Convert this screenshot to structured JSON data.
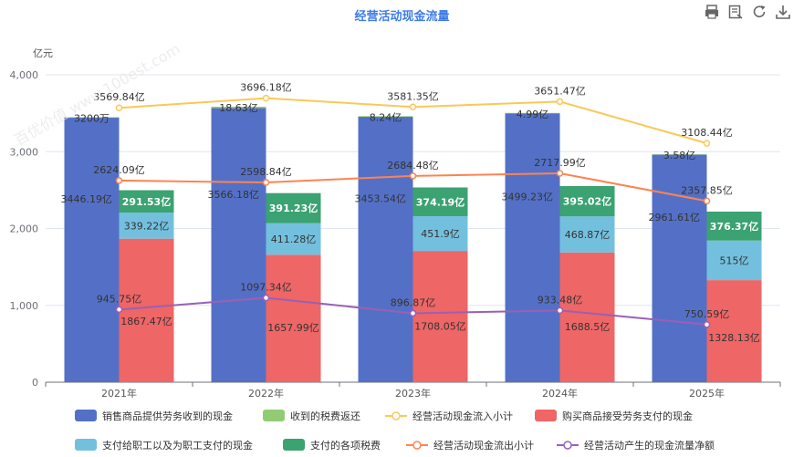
{
  "toolbar": {
    "icons": [
      "print-icon",
      "data-view-icon",
      "refresh-icon",
      "download-icon"
    ]
  },
  "chart_data": {
    "type": "bar",
    "title": "经营活动现金流量",
    "ylabel": "亿元",
    "ylim": [
      0,
      4000
    ],
    "yticks": [
      0,
      1000,
      2000,
      3000,
      4000
    ],
    "ytick_labels": [
      "0",
      "1,000",
      "2,000",
      "3,000",
      "4,000"
    ],
    "categories": [
      "2021年",
      "2022年",
      "2023年",
      "2024年",
      "2025年"
    ],
    "stack_left": [
      {
        "name": "销售商品提供劳务收到的现金",
        "color": "#5470c6",
        "values": [
          3446.19,
          3566.18,
          3453.54,
          3499.23,
          2961.61
        ],
        "labels": [
          "3446.19亿",
          "3566.18亿",
          "3453.54亿",
          "3499.23亿",
          "2961.61亿"
        ]
      },
      {
        "name": "收到的税费返还",
        "color": "#91cc75",
        "values": [
          0.32,
          18.63,
          8.24,
          4.99,
          3.58
        ],
        "labels": [
          "3200万",
          "18.63亿",
          "8.24亿",
          "4.99亿",
          "3.58亿"
        ]
      }
    ],
    "stack_right": [
      {
        "name": "购买商品接受劳务支付的现金",
        "color": "#ee6666",
        "values": [
          1867.47,
          1657.99,
          1708.05,
          1688.5,
          1328.13
        ],
        "labels": [
          "1867.47亿",
          "1657.99亿",
          "1708.05亿",
          "1688.5亿",
          "1328.13亿"
        ]
      },
      {
        "name": "支付给职工以及为职工支付的现金",
        "color": "#73c0de",
        "values": [
          339.22,
          411.28,
          451.9,
          468.87,
          515
        ],
        "labels": [
          "339.22亿",
          "411.28亿",
          "451.9亿",
          "468.87亿",
          "515亿"
        ]
      },
      {
        "name": "支付的各项税费",
        "color": "#3ba272",
        "values": [
          291.53,
          391.23,
          374.19,
          395.02,
          376.37
        ],
        "labels": [
          "291.53亿",
          "391.23亿",
          "374.19亿",
          "395.02亿",
          "376.37亿"
        ]
      }
    ],
    "lines": [
      {
        "name": "经营活动现金流入小计",
        "color": "#fac858",
        "values": [
          3569.84,
          3696.18,
          3581.35,
          3651.47,
          3108.44
        ],
        "labels": [
          "3569.84亿",
          "3696.18亿",
          "3581.35亿",
          "3651.47亿",
          "3108.44亿"
        ]
      },
      {
        "name": "经营活动现金流出小计",
        "color": "#fc8452",
        "values": [
          2624.09,
          2598.84,
          2684.48,
          2717.99,
          2357.85
        ],
        "labels": [
          "2624.09亿",
          "2598.84亿",
          "2684.48亿",
          "2717.99亿",
          "2357.85亿"
        ]
      },
      {
        "name": "经营活动产生的现金流量净额",
        "color": "#9a60b4",
        "values": [
          945.75,
          1097.34,
          896.87,
          933.48,
          750.59
        ],
        "labels": [
          "945.75亿",
          "1097.34亿",
          "896.87亿",
          "933.48亿",
          "750.59亿"
        ]
      }
    ],
    "legend_position": "bottom",
    "legend_order": [
      "销售商品提供劳务收到的现金",
      "收到的税费返还",
      "经营活动现金流入小计",
      "购买商品接受劳务支付的现金",
      "支付给职工以及为职工支付的现金",
      "支付的各项税费",
      "经营活动现金流出小计",
      "经营活动产生的现金流量净额"
    ],
    "watermark": "百优价值 www.100est.com"
  }
}
